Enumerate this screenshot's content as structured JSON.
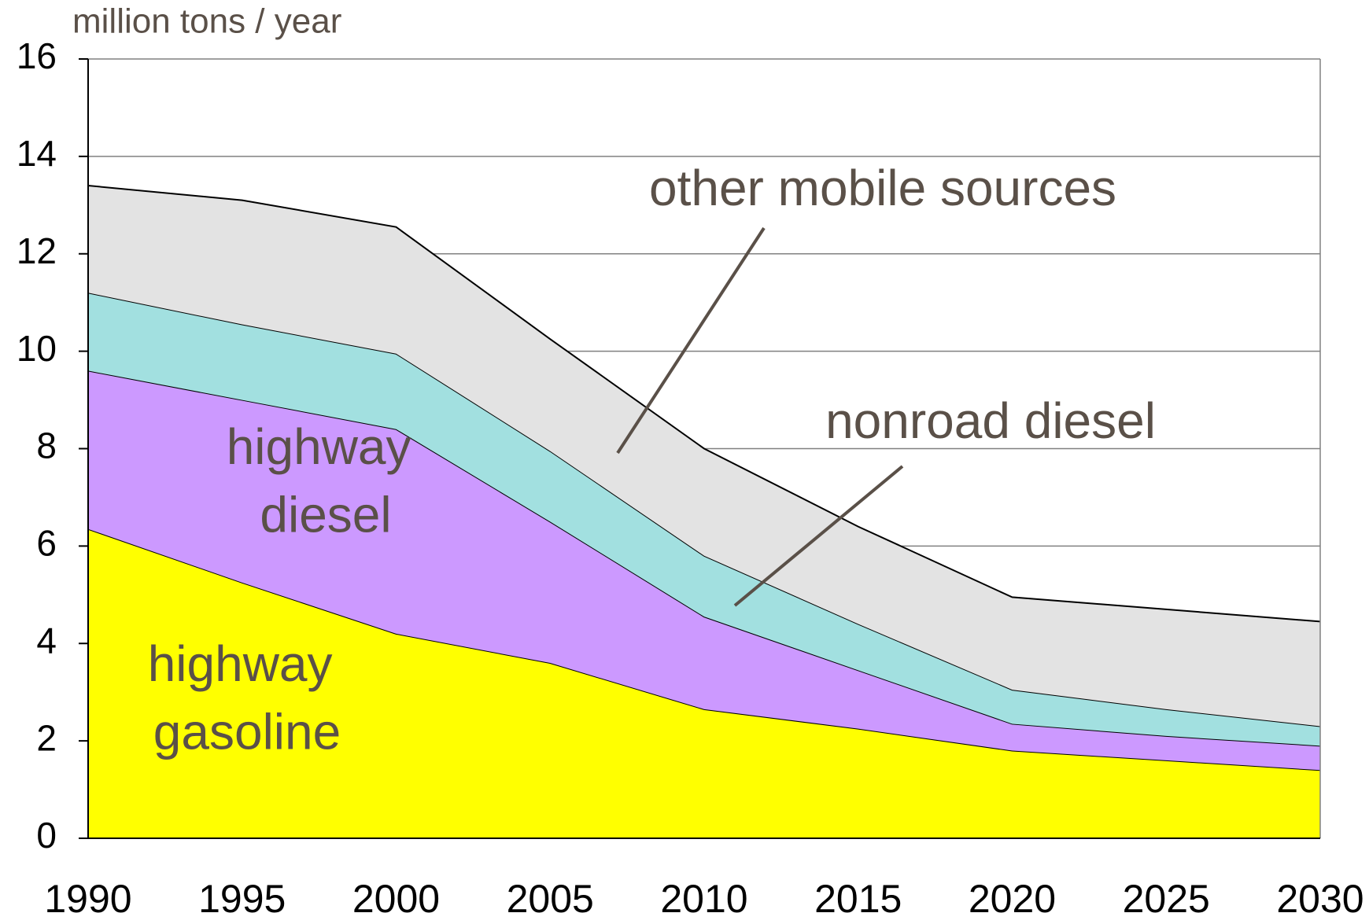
{
  "chart_data": {
    "type": "stacked_area",
    "y_axis_label": "million tons / year",
    "x": [
      1990,
      1995,
      2000,
      2005,
      2010,
      2015,
      2020,
      2025,
      2030
    ],
    "xlim": [
      1990,
      2030
    ],
    "xticks": [
      1990,
      1995,
      2000,
      2005,
      2010,
      2015,
      2020,
      2025,
      2030
    ],
    "ylim": [
      0,
      16
    ],
    "yticks": [
      0,
      2,
      4,
      6,
      8,
      10,
      12,
      14,
      16
    ],
    "grid": true,
    "series": [
      {
        "name": "highway gasoline",
        "color": "#ffff00",
        "values": [
          6.35,
          5.25,
          4.2,
          3.6,
          2.65,
          2.25,
          1.8,
          1.6,
          1.4
        ]
      },
      {
        "name": "highway diesel",
        "color": "#cc99ff",
        "values": [
          3.25,
          3.75,
          4.2,
          2.9,
          1.9,
          1.2,
          0.55,
          0.5,
          0.5
        ]
      },
      {
        "name": "nonroad diesel",
        "color": "#a2e0e0",
        "values": [
          1.6,
          1.55,
          1.55,
          1.45,
          1.25,
          0.95,
          0.7,
          0.55,
          0.4
        ]
      },
      {
        "name": "other mobile sources",
        "color": "#e3e3e3",
        "values": [
          2.2,
          2.55,
          2.6,
          2.3,
          2.2,
          2.0,
          1.9,
          2.05,
          2.15
        ]
      }
    ]
  }
}
